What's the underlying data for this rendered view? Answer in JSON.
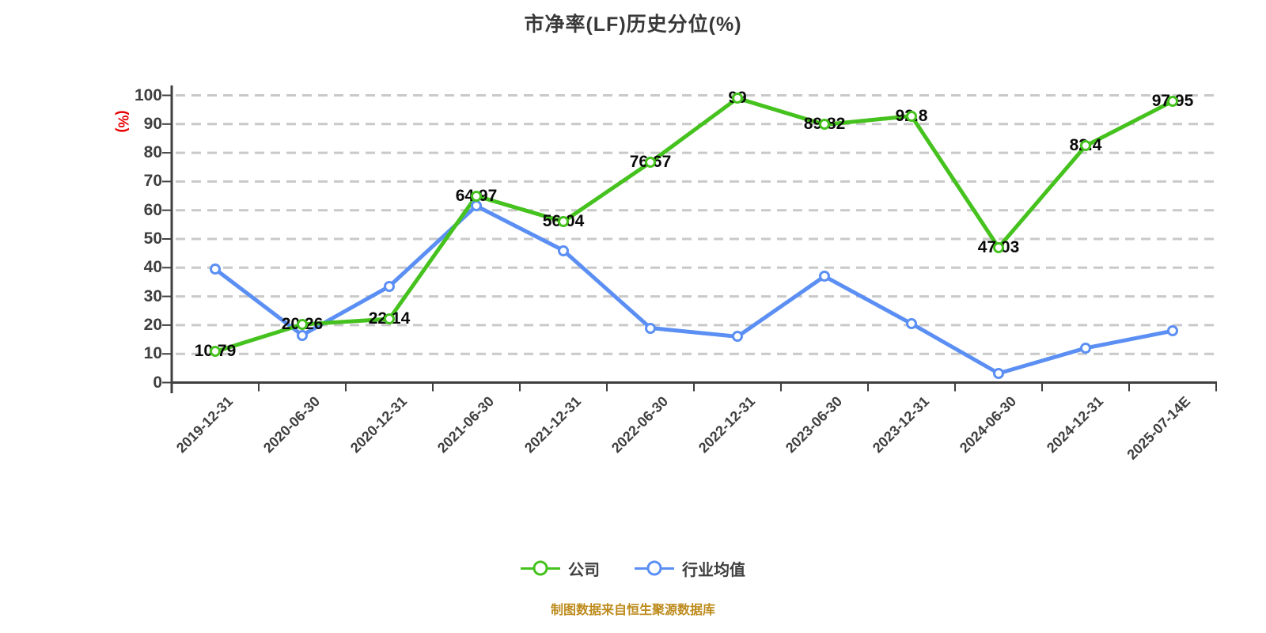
{
  "title": {
    "text": "市净率(LF)历史分位(%)",
    "color": "#383838"
  },
  "y_axis": {
    "unit": "(%)",
    "unit_color": "#e60000"
  },
  "footer": {
    "text": "制图数据来自恒生聚源数据库",
    "color": "#bd8b1d"
  },
  "colors": {
    "company_line": "#45c21e",
    "industry_line": "#5b8ff3",
    "grid": "#c9c9c9",
    "axis": "#3f3f3f",
    "marker_fill": "#ffffff",
    "label_text": "#0a0a0a"
  },
  "chart_data": {
    "type": "line",
    "title": "市净率(LF)历史分位(%)",
    "ylabel": "(%)",
    "categories": [
      "2019-12-31",
      "2020-06-30",
      "2020-12-31",
      "2021-06-30",
      "2021-12-31",
      "2022-06-30",
      "2022-12-31",
      "2023-06-30",
      "2023-12-31",
      "2024-06-30",
      "2024-12-31",
      "2025-07-14E"
    ],
    "series": [
      {
        "name": "公司",
        "color": "#45c21e",
        "point_labels": true,
        "values": [
          10.79,
          20.26,
          22.14,
          64.97,
          56.04,
          76.67,
          99,
          89.82,
          92.8,
          47.03,
          82.4,
          97.95
        ]
      },
      {
        "name": "行业均值",
        "color": "#5b8ff3",
        "point_labels": false,
        "values": [
          39.5,
          16.5,
          33.5,
          61.5,
          46,
          19,
          16,
          37,
          20.5,
          3.2,
          12,
          18
        ]
      }
    ],
    "ylim": [
      0,
      100
    ],
    "y_ticks": [
      0,
      10,
      20,
      30,
      40,
      50,
      60,
      70,
      80,
      90,
      100
    ],
    "grid": "horizontal-dashed",
    "legend_position": "bottom"
  }
}
